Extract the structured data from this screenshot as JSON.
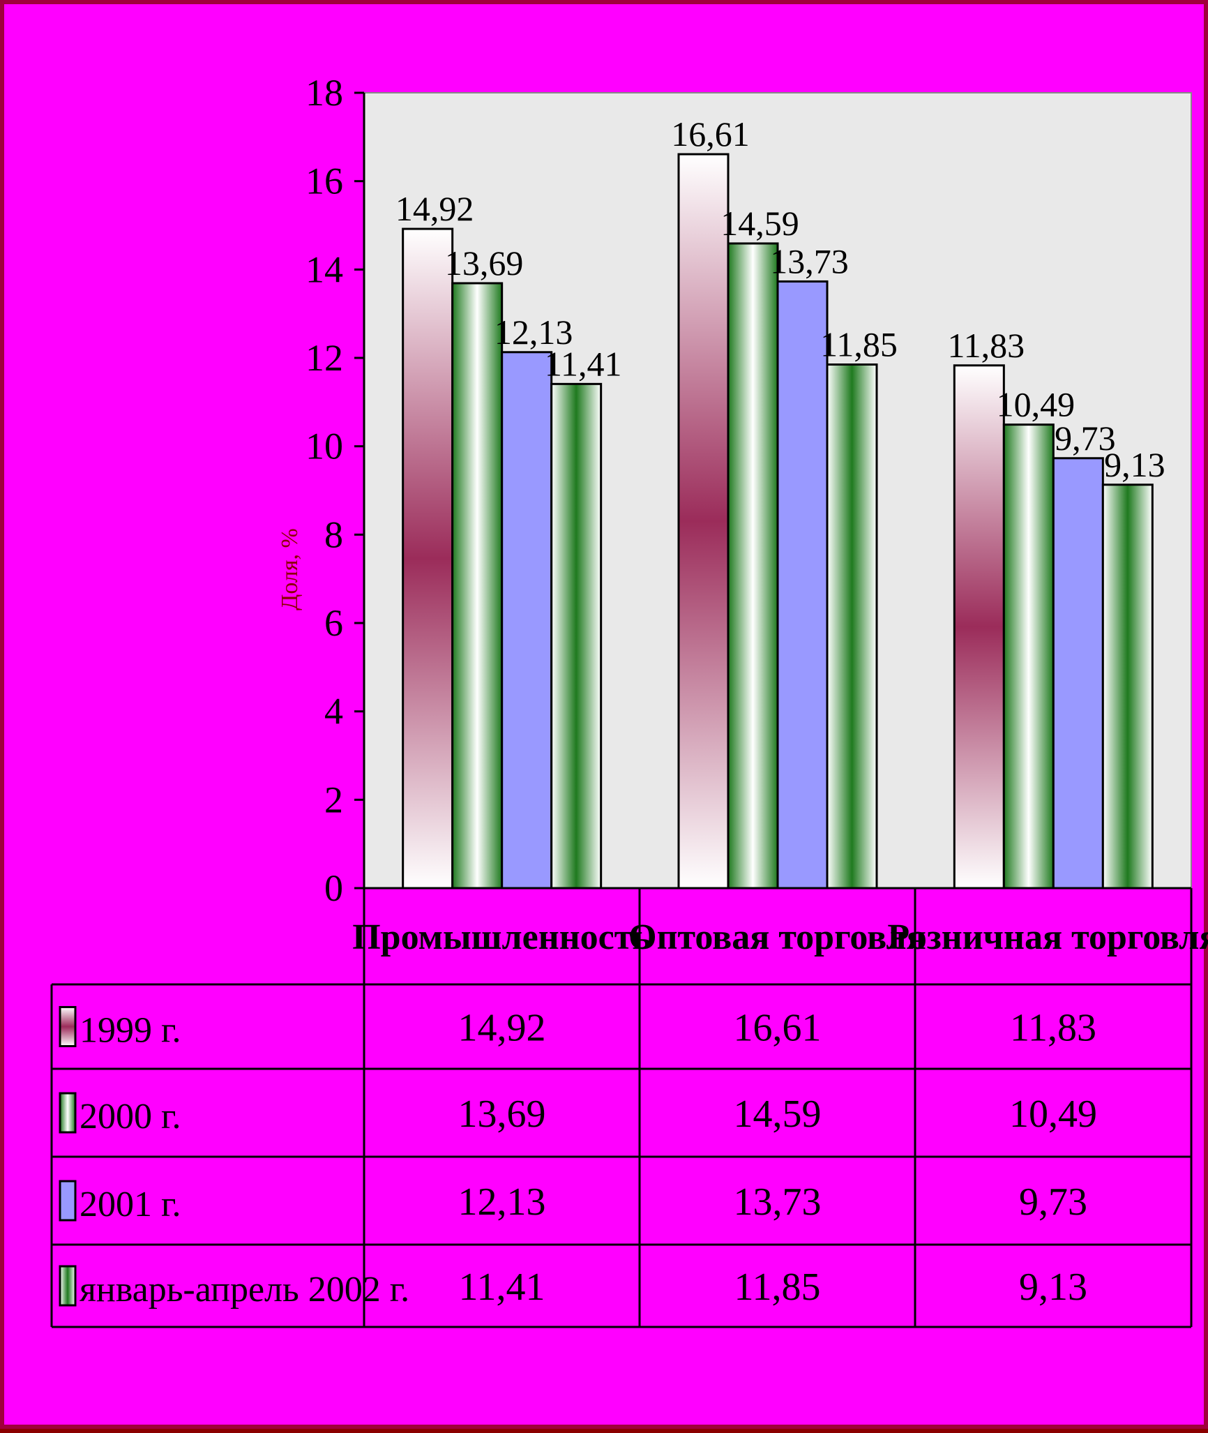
{
  "chart_data": {
    "type": "bar",
    "categories": [
      "Промышленность",
      "Оптовая торговля",
      "Розничная торговля"
    ],
    "series": [
      {
        "name": "1999 г.",
        "values": [
          14.92,
          16.61,
          11.83
        ],
        "labels": [
          "14,92",
          "16,61",
          "11,83"
        ]
      },
      {
        "name": "2000 г.",
        "values": [
          13.69,
          14.59,
          10.49
        ],
        "labels": [
          "13,69",
          "14,59",
          "10,49"
        ]
      },
      {
        "name": "2001 г.",
        "values": [
          12.13,
          13.73,
          9.73
        ],
        "labels": [
          "12,13",
          "13,73",
          "9,73"
        ]
      },
      {
        "name": "январь-апрель 2002 г.",
        "values": [
          11.41,
          11.85,
          9.13
        ],
        "labels": [
          "11,41",
          "11,85",
          "9,13"
        ]
      }
    ],
    "ylabel": "Доля, %",
    "ylim": [
      0,
      18
    ],
    "yticks": [
      0,
      2,
      4,
      6,
      8,
      10,
      12,
      14,
      16,
      18
    ],
    "grid": false,
    "legend": "data-table",
    "colors": {
      "page_background": "#ff00ff",
      "plot_background": "#e9e9e9",
      "maroon_gradient": "#9b2c5a",
      "green_gradient": "#1f7a1f",
      "periwinkle": "#9999ff"
    }
  }
}
